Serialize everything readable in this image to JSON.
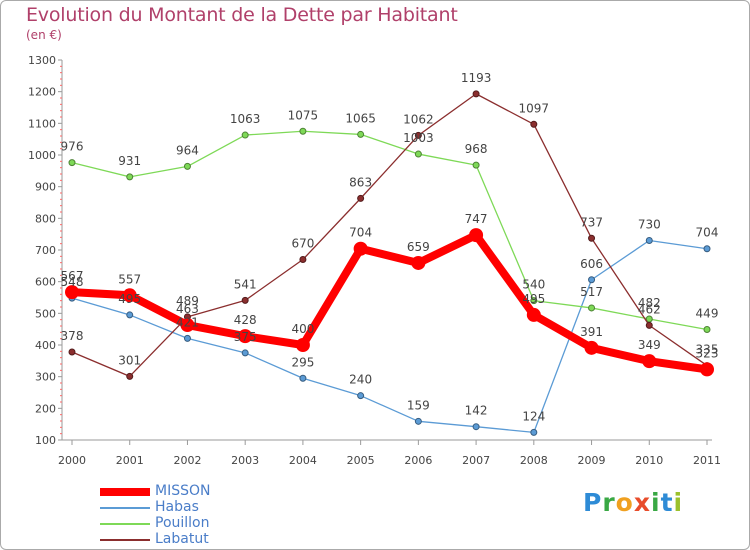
{
  "title": "Evolution du Montant de la Dette par Habitant",
  "unit_label": "(en €)",
  "logo": {
    "text": "Proxiti",
    "letter_colors": [
      "#2e8bd6",
      "#39a844",
      "#f0a020",
      "#e84c2b",
      "#39a844",
      "#2e8bd6",
      "#9bc12c"
    ]
  },
  "chart_data": {
    "type": "line",
    "categories": [
      "2000",
      "2001",
      "2002",
      "2003",
      "2004",
      "2005",
      "2006",
      "2007",
      "2008",
      "2009",
      "2010",
      "2011"
    ],
    "ylim": [
      100,
      1300
    ],
    "yticks": [
      "100",
      "200",
      "300",
      "400",
      "500",
      "600",
      "700",
      "800",
      "900",
      "1000",
      "1100",
      "1200",
      "1300"
    ],
    "grid": false,
    "legend_position": "bottom-left",
    "series": [
      {
        "name": "MISSON",
        "color": "#ff0000",
        "values": [
          567,
          557,
          463,
          428,
          400,
          704,
          659,
          747,
          495,
          391,
          349,
          323
        ],
        "labels": [
          "567",
          "557",
          "463",
          "428",
          "400",
          "704",
          "659",
          "747",
          "495",
          "391",
          "349",
          "323"
        ]
      },
      {
        "name": "Habas",
        "color": "#5b9bd5",
        "values": [
          548,
          495,
          421,
          375,
          295,
          240,
          159,
          142,
          124,
          606,
          730,
          704
        ],
        "labels": [
          "548",
          "495",
          "421",
          "375",
          "295",
          "240",
          "159",
          "142",
          "124",
          "606",
          "730",
          "704"
        ]
      },
      {
        "name": "Pouillon",
        "color": "#7ed957",
        "values": [
          976,
          931,
          964,
          1063,
          1075,
          1065,
          1003,
          968,
          540,
          517,
          482,
          449
        ],
        "labels": [
          "976",
          "931",
          "964",
          "1063",
          "1075",
          "1065",
          "1003",
          "968",
          "540",
          "517",
          "482",
          "449"
        ]
      },
      {
        "name": "Labatut",
        "color": "#8b2e2e",
        "values": [
          378,
          301,
          489,
          541,
          670,
          863,
          1062,
          1193,
          1097,
          737,
          462,
          335
        ],
        "labels": [
          "378",
          "301",
          "489",
          "541",
          "670",
          "863",
          "1062",
          "1193",
          "1097",
          "737",
          "462",
          "335"
        ]
      }
    ]
  }
}
